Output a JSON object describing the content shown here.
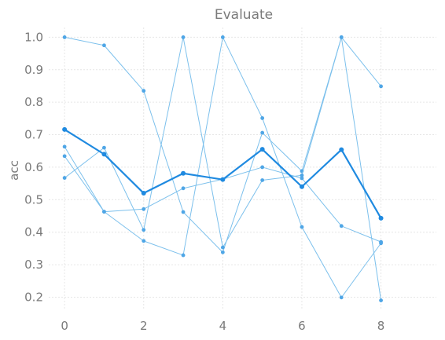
{
  "chart_data": {
    "type": "line",
    "title": "Evaluate",
    "xlabel": "",
    "ylabel": "acc",
    "x": [
      0,
      1,
      2,
      3,
      4,
      5,
      6,
      7,
      8
    ],
    "xlim": [
      -0.4,
      9.4
    ],
    "ylim": [
      0.16,
      1.03
    ],
    "xticks": [
      0,
      2,
      4,
      6,
      8
    ],
    "yticks": [
      0.2,
      0.3,
      0.4,
      0.5,
      0.6,
      0.7,
      0.8,
      0.9,
      1.0
    ],
    "grid": true,
    "legend": "none",
    "series": [
      {
        "values": [
          1.0,
          0.975,
          0.835,
          0.462,
          0.338,
          0.706,
          0.588,
          1.0,
          0.849
        ],
        "color": "#7cc0ec",
        "emphasis": false
      },
      {
        "values": [
          0.663,
          0.463,
          0.373,
          0.329,
          1.0,
          0.751,
          0.416,
          0.199,
          0.366
        ],
        "color": "#7cc0ec",
        "emphasis": false
      },
      {
        "values": [
          0.567,
          0.66,
          0.407,
          1.0,
          0.353,
          0.56,
          0.575,
          1.0,
          0.19
        ],
        "color": "#7cc0ec",
        "emphasis": false
      },
      {
        "values": [
          0.634,
          0.463,
          0.471,
          0.535,
          0.563,
          0.6,
          0.566,
          0.419,
          0.37
        ],
        "color": "#7cc0ec",
        "emphasis": false
      },
      {
        "values": [
          0.716,
          0.64,
          0.52,
          0.581,
          0.562,
          0.655,
          0.54,
          0.654,
          0.443
        ],
        "color": "#1f8ae0",
        "emphasis": true
      }
    ]
  }
}
